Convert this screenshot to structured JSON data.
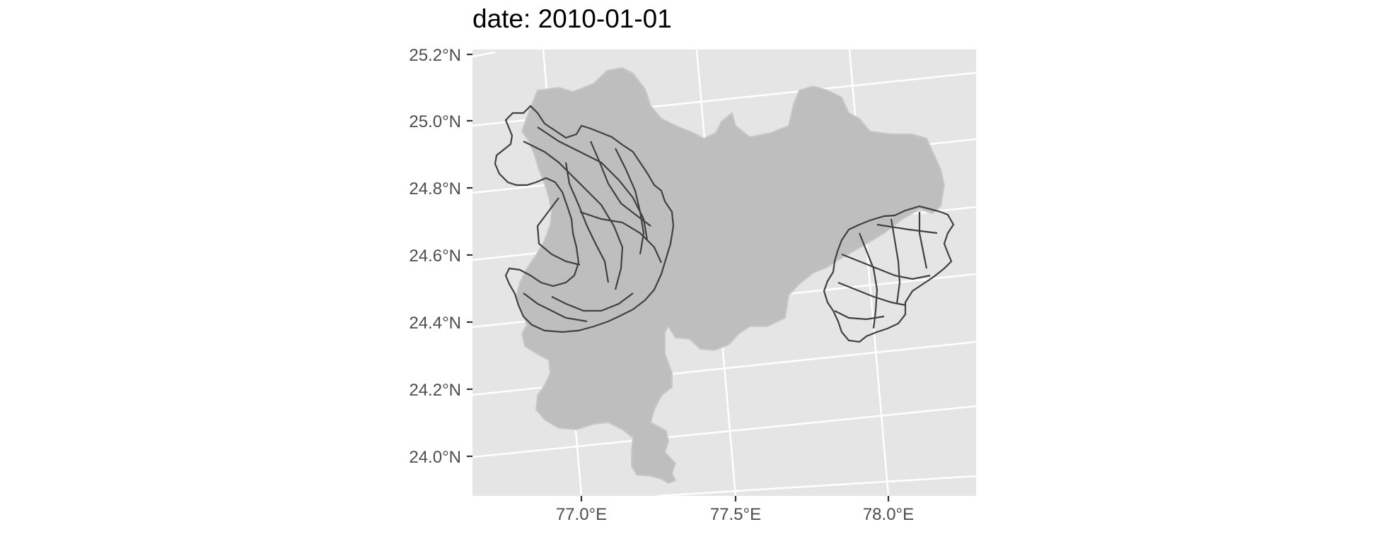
{
  "title": "date: 2010-01-01",
  "map": {
    "background_color": "#e5e5e5",
    "grid_color": "#ffffff",
    "region_fill": "#bebebe",
    "boundary_color": "#404040",
    "y_axis_labels": [
      "25.2°N",
      "25.0°N",
      "24.8°N",
      "24.6°N",
      "24.4°N",
      "24.2°N",
      "24.0°N"
    ],
    "x_axis_labels": [
      "77.0°E",
      "77.5°E",
      "78.0°E"
    ],
    "lat_ticks": [
      25.2,
      25.0,
      24.8,
      24.6,
      24.4,
      24.2,
      24.0
    ],
    "lon_ticks": [
      77.0,
      77.5,
      78.0
    ]
  }
}
